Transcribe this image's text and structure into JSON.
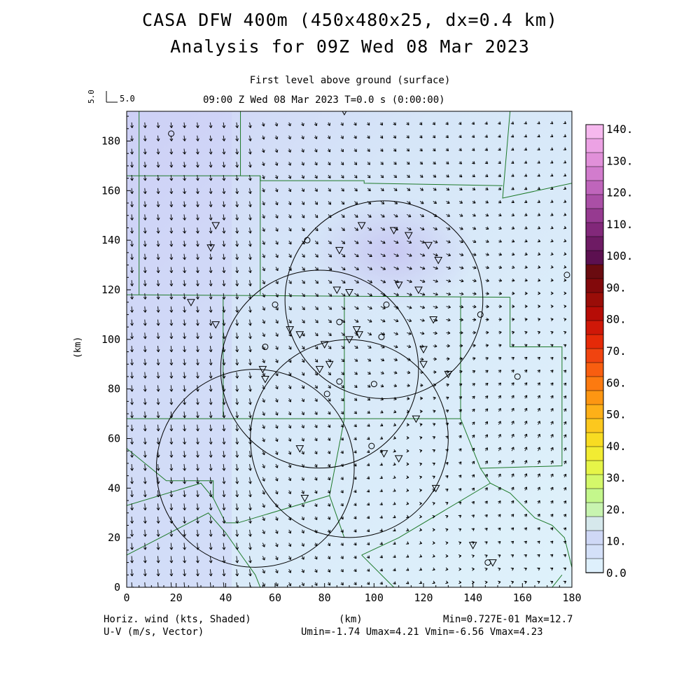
{
  "header": {
    "title_line1": "CASA DFW 400m (450x480x25, dx=0.4 km)",
    "title_line2": "Analysis for 09Z Wed 08 Mar 2023",
    "subtitle_line1": "First level above ground (surface)",
    "subtitle_line2": "09:00 Z Wed 08 Mar 2023    T=0.0 s (0:00:00)"
  },
  "vector_scale": {
    "label": "5.0",
    "rotated_label": "5.0"
  },
  "axes": {
    "ylabel": "(km)",
    "xlabel": "(km)",
    "x_ticks": [
      "0",
      "20",
      "40",
      "60",
      "80",
      "100",
      "120",
      "140",
      "160",
      "180"
    ],
    "y_ticks": [
      "0",
      "20",
      "40",
      "60",
      "80",
      "100",
      "120",
      "140",
      "160",
      "180"
    ],
    "xlim": [
      0,
      180
    ],
    "ylim": [
      0,
      192
    ]
  },
  "footer": {
    "left_line1": "Horiz. wind (kts, Shaded)",
    "left_line2": "U-V (m/s, Vector)",
    "right_line1": "Min=0.727E-01 Max=12.7",
    "right_line2": "Umin=-1.74 Umax=4.21 Vmin=-6.56 Vmax=4.23"
  },
  "colorbar": {
    "labels": [
      "140.",
      "130.",
      "120.",
      "110.",
      "100.",
      "90.",
      "80.",
      "70.",
      "60.",
      "50.",
      "40.",
      "30.",
      "20.",
      "10.",
      "0.0"
    ],
    "colors": [
      "#f6b8ee",
      "#eca2e4",
      "#e190d9",
      "#d27ccd",
      "#bf65bb",
      "#aa4fa6",
      "#963a90",
      "#82287a",
      "#6e1b64",
      "#5c1050",
      "#6a0b10",
      "#82090b",
      "#9a0d08",
      "#b60c06",
      "#cf1808",
      "#e52a08",
      "#f04410",
      "#f85e10",
      "#fc7a10",
      "#fd9612",
      "#feb018",
      "#fcc81e",
      "#f8dc22",
      "#f2ec32",
      "#e6f548",
      "#d4f86a",
      "#c4f78c",
      "#c8f4b0",
      "#d6e8ec",
      "#cfd8f6",
      "#d4e0f8",
      "#def0fc"
    ],
    "color_note": "shading scale for horizontal wind speed (kts)"
  },
  "map": {
    "background_colors": {
      "light": "#dff2fb",
      "mid": "#d6e6f8",
      "dark": "#cfd2f6"
    },
    "county_line_color": "#1e7a2a",
    "range_ring_color": "#000000",
    "range_rings_km": [
      {
        "cx": 52,
        "cy": 48,
        "r": 40
      },
      {
        "cx": 90,
        "cy": 60,
        "r": 40
      },
      {
        "cx": 78,
        "cy": 88,
        "r": 40
      },
      {
        "cx": 104,
        "cy": 116,
        "r": 40
      }
    ],
    "station_markers_triangle": [
      [
        88,
        192
      ],
      [
        36,
        146
      ],
      [
        34,
        137
      ],
      [
        95,
        146
      ],
      [
        86,
        136
      ],
      [
        108,
        144
      ],
      [
        114,
        142
      ],
      [
        122,
        138
      ],
      [
        126,
        132
      ],
      [
        110,
        122
      ],
      [
        118,
        120
      ],
      [
        85,
        120
      ],
      [
        90,
        119
      ],
      [
        26,
        115
      ],
      [
        36,
        106
      ],
      [
        66,
        104
      ],
      [
        70,
        102
      ],
      [
        80,
        98
      ],
      [
        82,
        90
      ],
      [
        94,
        102
      ],
      [
        93,
        104
      ],
      [
        90,
        100
      ],
      [
        124,
        108
      ],
      [
        130,
        86
      ],
      [
        120,
        96
      ],
      [
        120,
        90
      ],
      [
        78,
        88
      ],
      [
        55,
        88
      ],
      [
        56,
        84
      ],
      [
        70,
        56
      ],
      [
        110,
        52
      ],
      [
        125,
        40
      ],
      [
        72,
        36
      ],
      [
        117,
        68
      ],
      [
        104,
        54
      ],
      [
        140,
        17
      ],
      [
        148,
        10
      ]
    ],
    "station_markers_circle": [
      [
        18,
        183
      ],
      [
        73,
        140
      ],
      [
        60,
        114
      ],
      [
        105,
        114
      ],
      [
        56,
        97
      ],
      [
        103,
        101
      ],
      [
        86,
        107
      ],
      [
        100,
        82
      ],
      [
        81,
        78
      ],
      [
        86,
        83
      ],
      [
        99,
        57
      ],
      [
        158,
        85
      ],
      [
        143,
        110
      ],
      [
        178,
        126
      ],
      [
        146,
        10
      ]
    ],
    "wind_field_description": "flow converging over central domain"
  },
  "chart_data": {
    "type": "vector-field",
    "title": "CASA DFW 400m (450x480x25, dx=0.4 km)",
    "subtitle": "Analysis for 09Z Wed 08 Mar 2023",
    "xlabel": "(km)",
    "ylabel": "(km)",
    "xlim": [
      0,
      180
    ],
    "ylim": [
      0,
      192
    ],
    "min": "0.727E-01",
    "max": "12.7",
    "umin": -1.74,
    "umax": 4.21,
    "vmin": -6.56,
    "vmax": 4.23
  }
}
